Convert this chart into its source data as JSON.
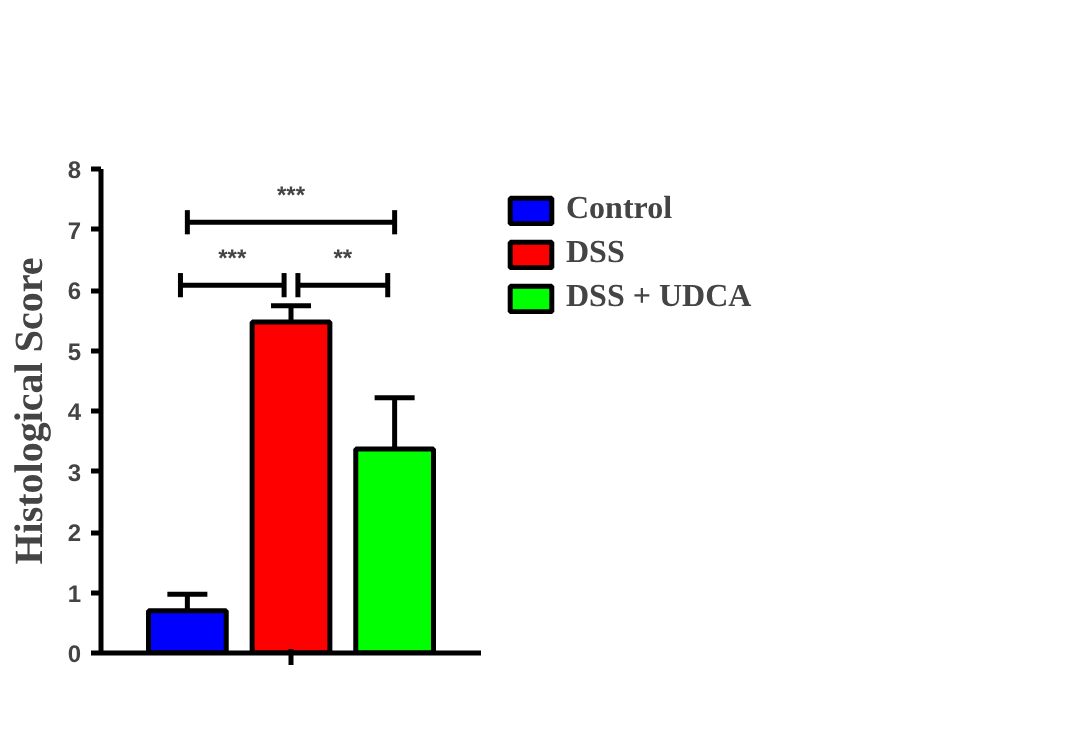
{
  "chart_data": {
    "type": "bar",
    "ylabel": "Histological Score",
    "categories": [
      null
    ],
    "series": [
      {
        "name": "Control",
        "color": "#0000ff",
        "values": [
          0.7
        ],
        "errors": [
          [
            0.7,
            0.97
          ]
        ]
      },
      {
        "name": "DSS",
        "color": "#ff0000",
        "values": [
          5.47
        ],
        "errors": [
          [
            5.47,
            5.74
          ]
        ]
      },
      {
        "name": "DSS + UDCA",
        "color": "#00ff00",
        "values": [
          3.37
        ],
        "errors": [
          [
            3.37,
            4.22
          ]
        ]
      }
    ],
    "ylim": [
      0,
      8
    ],
    "yticks": [
      0,
      1,
      2,
      3,
      4,
      5,
      6,
      7,
      8
    ],
    "legend": "right",
    "annotations": [
      "***",
      "***",
      "**"
    ]
  }
}
